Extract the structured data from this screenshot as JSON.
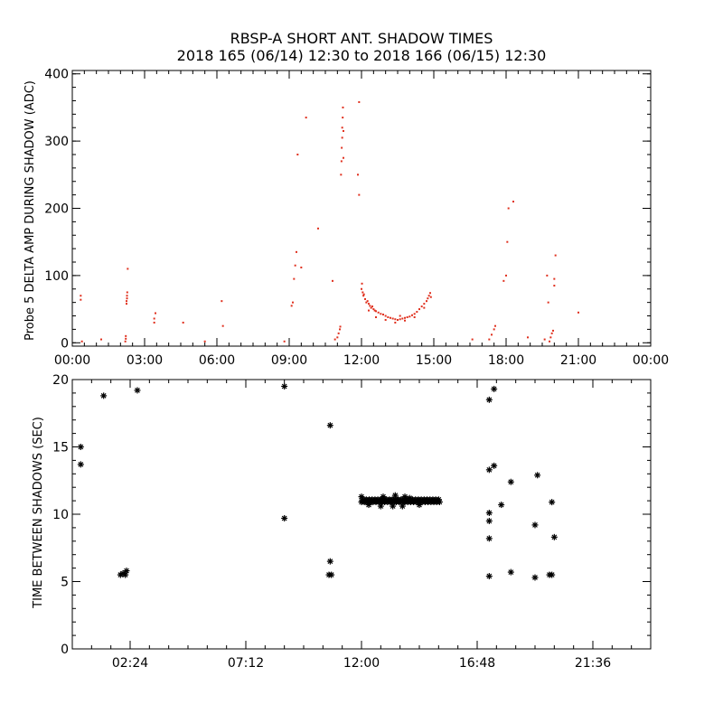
{
  "colors": {
    "background": "#ffffff",
    "axes": "#000000",
    "top_points": "#e0301e",
    "bottom_points": "#000000"
  },
  "chart_data": [
    {
      "type": "scatter",
      "title": "RBSP-A SHORT ANT. SHADOW TIMES",
      "subtitle": "2018 165 (06/14) 12:30 to 2018 166 (06/15) 12:30",
      "xlabel": "",
      "ylabel": "Probe 5 DELTA AMP DURING SHADOW (ADC)",
      "xlim": [
        0,
        24
      ],
      "ylim": [
        -5,
        405
      ],
      "x_units": "hours",
      "x_ticks": [
        {
          "v": 0,
          "label": "00:00"
        },
        {
          "v": 3,
          "label": "03:00"
        },
        {
          "v": 6,
          "label": "06:00"
        },
        {
          "v": 9,
          "label": "09:00"
        },
        {
          "v": 12,
          "label": "12:00"
        },
        {
          "v": 15,
          "label": "15:00"
        },
        {
          "v": 18,
          "label": "18:00"
        },
        {
          "v": 21,
          "label": "21:00"
        },
        {
          "v": 24,
          "label": "00:00"
        }
      ],
      "y_ticks": [
        {
          "v": 0,
          "label": "0"
        },
        {
          "v": 100,
          "label": "100"
        },
        {
          "v": 200,
          "label": "200"
        },
        {
          "v": 300,
          "label": "300"
        },
        {
          "v": 400,
          "label": "400"
        }
      ],
      "grid": false,
      "point_color": "#e0301e",
      "points": [
        [
          0.35,
          70
        ],
        [
          0.35,
          64
        ],
        [
          0.4,
          2
        ],
        [
          1.2,
          5
        ],
        [
          2.2,
          2
        ],
        [
          2.22,
          6
        ],
        [
          2.22,
          10
        ],
        [
          2.25,
          58
        ],
        [
          2.25,
          62
        ],
        [
          2.27,
          66
        ],
        [
          2.27,
          70
        ],
        [
          2.28,
          75
        ],
        [
          2.3,
          110
        ],
        [
          3.4,
          30
        ],
        [
          3.4,
          36
        ],
        [
          3.45,
          44
        ],
        [
          4.6,
          30
        ],
        [
          5.5,
          2
        ],
        [
          6.2,
          62
        ],
        [
          6.25,
          25
        ],
        [
          8.8,
          2
        ],
        [
          9.1,
          55
        ],
        [
          9.15,
          60
        ],
        [
          9.2,
          95
        ],
        [
          9.25,
          115
        ],
        [
          9.3,
          135
        ],
        [
          9.35,
          280
        ],
        [
          9.7,
          335
        ],
        [
          9.5,
          112
        ],
        [
          10.2,
          170
        ],
        [
          10.8,
          92
        ],
        [
          10.9,
          5
        ],
        [
          11.0,
          8
        ],
        [
          11.05,
          14
        ],
        [
          11.1,
          20
        ],
        [
          11.12,
          24
        ],
        [
          11.15,
          250
        ],
        [
          11.17,
          270
        ],
        [
          11.18,
          290
        ],
        [
          11.2,
          305
        ],
        [
          11.2,
          320
        ],
        [
          11.22,
          335
        ],
        [
          11.23,
          350
        ],
        [
          11.25,
          275
        ],
        [
          11.25,
          315
        ],
        [
          11.9,
          358
        ],
        [
          11.85,
          250
        ],
        [
          11.9,
          220
        ],
        [
          12.0,
          80
        ],
        [
          12.02,
          88
        ],
        [
          12.05,
          75
        ],
        [
          12.08,
          70
        ],
        [
          12.1,
          72
        ],
        [
          12.15,
          65
        ],
        [
          12.2,
          60
        ],
        [
          12.25,
          62
        ],
        [
          12.3,
          58
        ],
        [
          12.35,
          55
        ],
        [
          12.4,
          52
        ],
        [
          12.45,
          54
        ],
        [
          12.5,
          50
        ],
        [
          12.55,
          48
        ],
        [
          12.6,
          47
        ],
        [
          12.7,
          45
        ],
        [
          12.8,
          43
        ],
        [
          12.9,
          42
        ],
        [
          13.0,
          40
        ],
        [
          13.1,
          38
        ],
        [
          13.2,
          37
        ],
        [
          13.3,
          36
        ],
        [
          13.4,
          35
        ],
        [
          13.5,
          34
        ],
        [
          13.6,
          35
        ],
        [
          13.7,
          36
        ],
        [
          13.8,
          37
        ],
        [
          13.9,
          38
        ],
        [
          14.0,
          39
        ],
        [
          14.1,
          41
        ],
        [
          14.2,
          43
        ],
        [
          14.3,
          46
        ],
        [
          14.4,
          50
        ],
        [
          14.5,
          54
        ],
        [
          14.6,
          58
        ],
        [
          14.7,
          62
        ],
        [
          14.75,
          66
        ],
        [
          14.8,
          70
        ],
        [
          14.85,
          74
        ],
        [
          14.88,
          68
        ],
        [
          12.6,
          38
        ],
        [
          13.0,
          34
        ],
        [
          13.4,
          30
        ],
        [
          13.8,
          33
        ],
        [
          14.2,
          38
        ],
        [
          12.3,
          48
        ],
        [
          13.6,
          40
        ],
        [
          14.6,
          52
        ],
        [
          16.6,
          5
        ],
        [
          17.3,
          5
        ],
        [
          17.4,
          12
        ],
        [
          17.5,
          20
        ],
        [
          17.55,
          25
        ],
        [
          17.9,
          92
        ],
        [
          18.0,
          100
        ],
        [
          18.05,
          150
        ],
        [
          18.1,
          200
        ],
        [
          18.3,
          210
        ],
        [
          18.9,
          8
        ],
        [
          19.6,
          5
        ],
        [
          19.7,
          100
        ],
        [
          19.75,
          60
        ],
        [
          19.8,
          2
        ],
        [
          19.85,
          8
        ],
        [
          19.9,
          14
        ],
        [
          19.95,
          18
        ],
        [
          20.0,
          85
        ],
        [
          20.0,
          95
        ],
        [
          20.05,
          130
        ],
        [
          21.0,
          45
        ]
      ]
    },
    {
      "type": "scatter",
      "title": "",
      "xlabel": "",
      "ylabel": "TIME BETWEEN SHADOWS (SEC)",
      "xlim": [
        0,
        24
      ],
      "ylim": [
        0,
        20
      ],
      "x_units": "hours",
      "x_ticks": [
        {
          "v": 2.4,
          "label": "02:24"
        },
        {
          "v": 7.2,
          "label": "07:12"
        },
        {
          "v": 12,
          "label": "12:00"
        },
        {
          "v": 16.8,
          "label": "16:48"
        },
        {
          "v": 21.6,
          "label": "21:36"
        }
      ],
      "y_ticks": [
        {
          "v": 0,
          "label": "0"
        },
        {
          "v": 5,
          "label": "5"
        },
        {
          "v": 10,
          "label": "10"
        },
        {
          "v": 15,
          "label": "15"
        },
        {
          "v": 20,
          "label": "20"
        }
      ],
      "grid": false,
      "marker": "asterisk",
      "point_color": "#000000",
      "points": [
        [
          0.35,
          15.0
        ],
        [
          0.35,
          13.7
        ],
        [
          1.3,
          18.8
        ],
        [
          2.0,
          5.5
        ],
        [
          2.1,
          5.6
        ],
        [
          2.2,
          5.5
        ],
        [
          2.25,
          5.8
        ],
        [
          2.7,
          19.2
        ],
        [
          8.8,
          19.5
        ],
        [
          8.8,
          9.7
        ],
        [
          10.7,
          16.6
        ],
        [
          10.7,
          6.5
        ],
        [
          10.65,
          5.5
        ],
        [
          10.75,
          5.5
        ],
        [
          17.3,
          18.5
        ],
        [
          17.3,
          13.3
        ],
        [
          17.3,
          10.1
        ],
        [
          17.3,
          9.5
        ],
        [
          17.3,
          8.2
        ],
        [
          17.3,
          5.4
        ],
        [
          17.5,
          19.3
        ],
        [
          17.5,
          13.6
        ],
        [
          17.8,
          10.7
        ],
        [
          18.2,
          12.4
        ],
        [
          18.2,
          5.7
        ],
        [
          19.2,
          9.2
        ],
        [
          19.2,
          5.3
        ],
        [
          19.3,
          12.9
        ],
        [
          19.9,
          10.9
        ],
        [
          20.0,
          8.3
        ],
        [
          19.8,
          5.5
        ],
        [
          19.9,
          5.5
        ]
      ],
      "band": {
        "x_start": 12.0,
        "x_end": 15.25,
        "y": 11.0,
        "spread": 0.3
      },
      "band_outliers": [
        [
          12.0,
          11.3
        ],
        [
          12.9,
          11.3
        ],
        [
          13.4,
          11.4
        ],
        [
          13.8,
          11.3
        ],
        [
          12.3,
          10.7
        ],
        [
          12.8,
          10.6
        ],
        [
          13.3,
          10.6
        ],
        [
          13.7,
          10.6
        ],
        [
          14.4,
          10.7
        ],
        [
          14.0,
          11.2
        ]
      ]
    }
  ]
}
